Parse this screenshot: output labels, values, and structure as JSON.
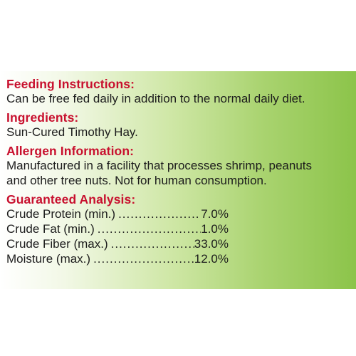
{
  "feeding": {
    "heading": "Feeding Instructions:",
    "body": "Can be free fed daily in addition to the normal daily diet."
  },
  "ingredients": {
    "heading": "Ingredients:",
    "body": "Sun-Cured Timothy Hay."
  },
  "allergen": {
    "heading": "Allergen Information:",
    "body": "Manufactured in a facility that processes shrimp, peanuts\nand other tree nuts. Not for human consumption."
  },
  "analysis": {
    "heading": "Guaranteed Analysis:",
    "rows": [
      {
        "name": "Crude Protein (min.)",
        "value": "7.0%"
      },
      {
        "name": "Crude Fat (min.)",
        "value": "1.0%"
      },
      {
        "name": "Crude Fiber (max.)",
        "value": "33.0%"
      },
      {
        "name": "Moisture (max.)",
        "value": "12.0%"
      }
    ]
  },
  "colors": {
    "heading": "#c8102e",
    "text": "#1c1c1c",
    "panel_gradient_end": "#8cc44a"
  }
}
